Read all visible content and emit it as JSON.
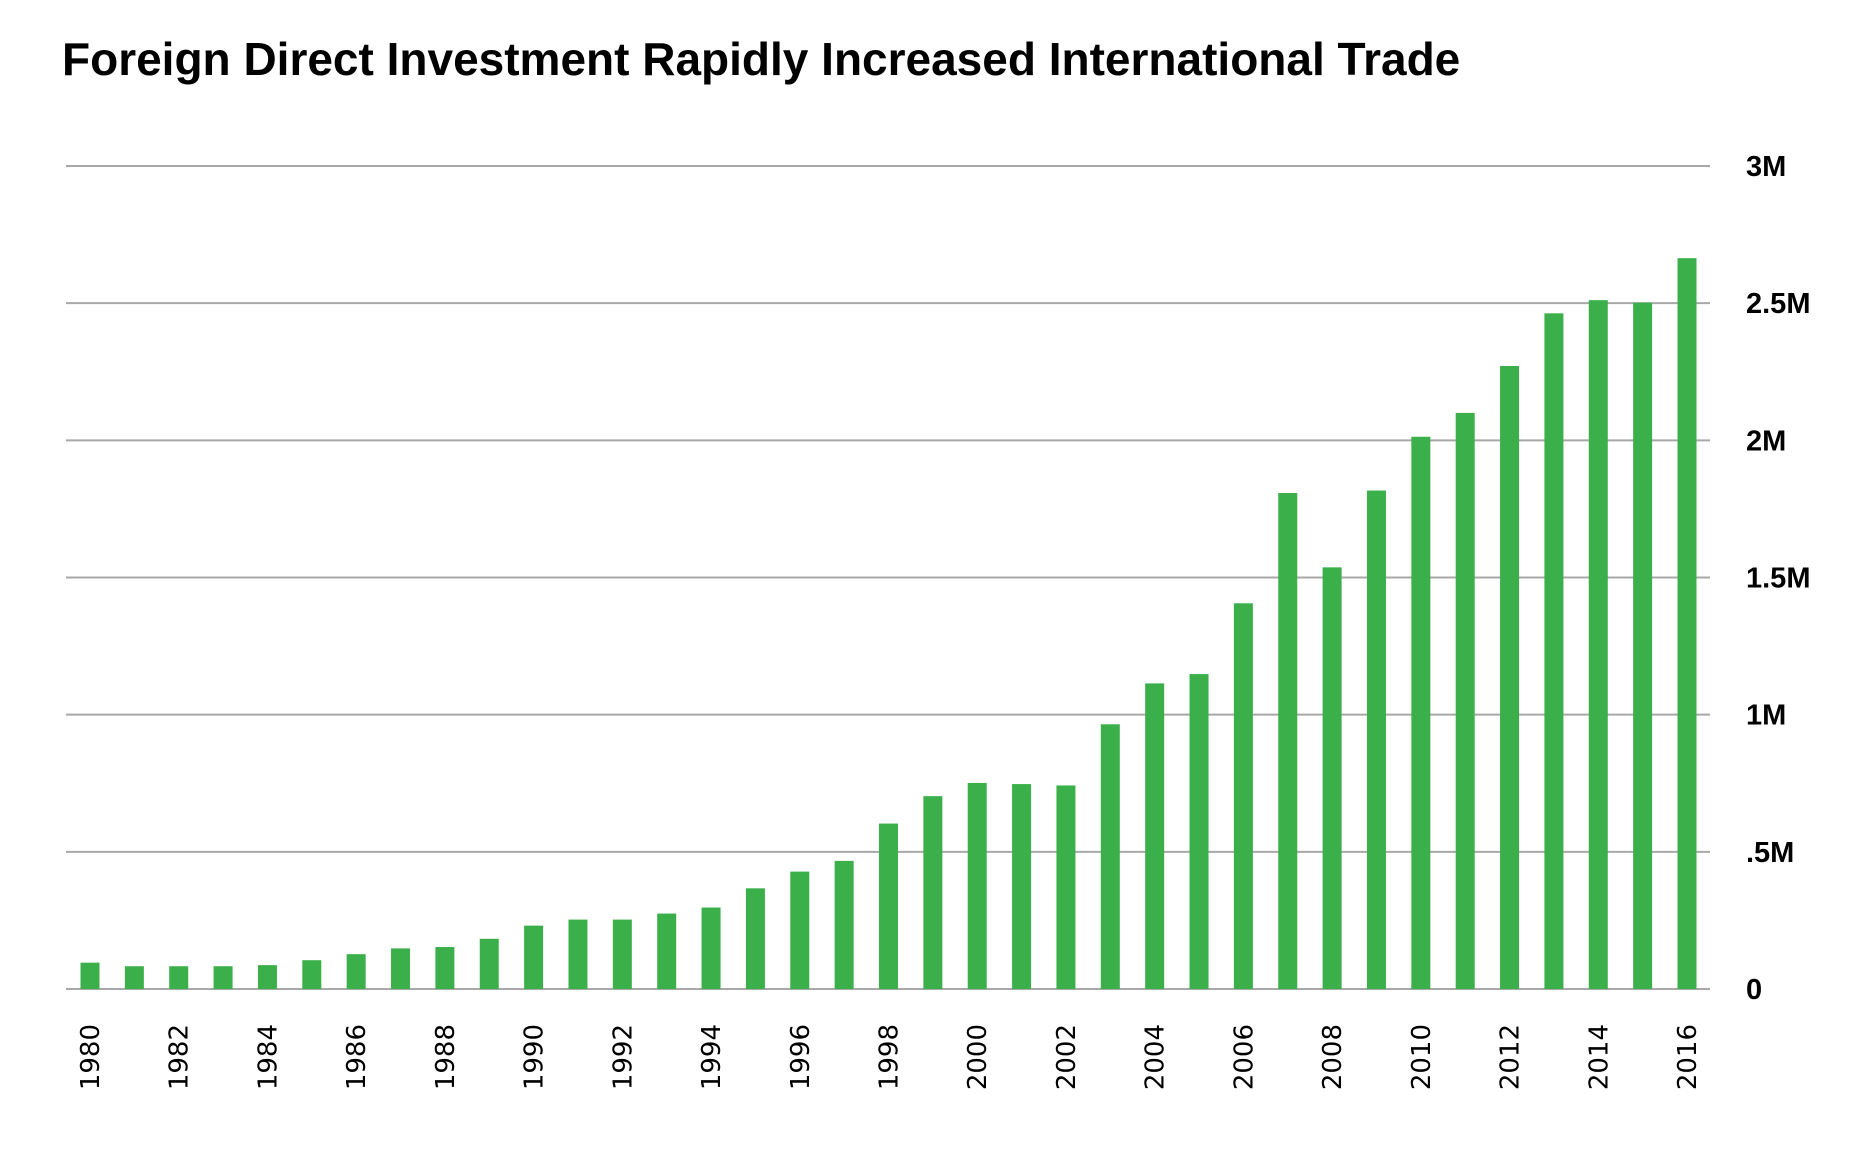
{
  "chart_data": {
    "type": "bar",
    "title": "Foreign Direct Investment Rapidly Increased International Trade",
    "xlabel": "",
    "ylabel": "",
    "ylim": [
      0,
      3000000
    ],
    "grid": true,
    "y_axis_position": "right",
    "bar_color": "#3bb04a",
    "grid_color": "#a8a8a8",
    "y_ticks": [
      {
        "value": 0,
        "label": "0"
      },
      {
        "value": 500000,
        "label": ".5M"
      },
      {
        "value": 1000000,
        "label": "1M"
      },
      {
        "value": 1500000,
        "label": "1.5M"
      },
      {
        "value": 2000000,
        "label": "2M"
      },
      {
        "value": 2500000,
        "label": "2.5M"
      },
      {
        "value": 3000000,
        "label": "3M"
      }
    ],
    "x_tick_labels": [
      "1980",
      "1982",
      "1984",
      "1986",
      "1988",
      "1990",
      "1992",
      "1994",
      "1996",
      "1998",
      "2000",
      "2002",
      "2004",
      "2006",
      "2008",
      "2010",
      "2012",
      "2014",
      "2016"
    ],
    "categories": [
      1980,
      1981,
      1982,
      1983,
      1984,
      1985,
      1986,
      1987,
      1988,
      1989,
      1990,
      1991,
      1992,
      1993,
      1994,
      1995,
      1996,
      1997,
      1998,
      1999,
      2000,
      2001,
      2002,
      2003,
      2004,
      2005,
      2006,
      2007,
      2008,
      2009,
      2010,
      2011,
      2012,
      2013,
      2014,
      2015,
      2016
    ],
    "values": [
      96000,
      83000,
      83000,
      83000,
      87000,
      105000,
      127000,
      148000,
      153000,
      183000,
      231000,
      253000,
      253000,
      275000,
      297000,
      367000,
      428000,
      467000,
      603000,
      703000,
      751000,
      747000,
      742000,
      965000,
      1114000,
      1148000,
      1406000,
      1808000,
      1537000,
      1817000,
      2013000,
      2100000,
      2271000,
      2463000,
      2511000,
      2502000,
      2664000
    ]
  }
}
